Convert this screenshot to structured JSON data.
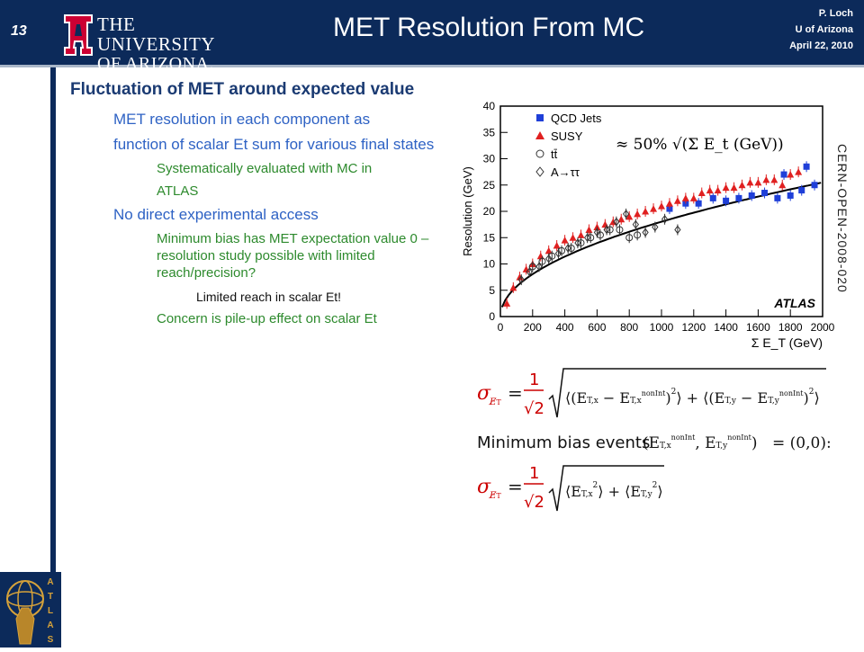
{
  "header": {
    "slide_number": "13",
    "university_line1": "THE UNIVERSITY",
    "university_line2": "OF ARIZONA.",
    "title": "MET Resolution From MC",
    "author": "P. Loch",
    "affiliation": "U of Arizona",
    "date": "April 22, 2010"
  },
  "body": {
    "bullet1": "Fluctuation of MET around expected value",
    "sub1": "MET resolution in each component as",
    "sub2": "function of scalar Et sum for various final states",
    "sub3a": "Systematically evaluated with MC in",
    "sub3b": "ATLAS",
    "sub4": "No direct experimental access",
    "sub5": "Minimum bias has MET expectation value 0 – resolution study possible with limited reach/precision?",
    "sub6": "Limited reach in scalar Et!",
    "sub7": "Concern is pile-up effect on scalar Et"
  },
  "side_label": "CERN-OPEN-2008-020",
  "formulas": {
    "min_bias_text": "Minimum bias events",
    "min_bias_value": "= (0,0):",
    "one": "1",
    "sqrt2": "√2"
  },
  "atlas_label": "ATLAS",
  "chart_data": {
    "type": "scatter",
    "xlabel": "Σ E_T (GeV)",
    "ylabel": "Resolution (GeV)",
    "xlim": [
      0,
      2000
    ],
    "ylim": [
      0,
      40
    ],
    "xticks": [
      0,
      200,
      400,
      600,
      800,
      1000,
      1200,
      1400,
      1600,
      1800,
      2000
    ],
    "yticks": [
      0,
      5,
      10,
      15,
      20,
      25,
      30,
      35,
      40
    ],
    "annotation": "≈ 50% √(Σ E_t (GeV))",
    "atlas_text": "ATLAS",
    "legend_position": "top-left",
    "fit_coefficient": 0.57,
    "series": [
      {
        "name": "QCD Jets",
        "color": "#1f3fd8",
        "marker": "square",
        "points": [
          [
            1050,
            20.5
          ],
          [
            1150,
            21.5
          ],
          [
            1230,
            21.5
          ],
          [
            1320,
            22.5
          ],
          [
            1400,
            22.0
          ],
          [
            1480,
            22.5
          ],
          [
            1560,
            23.0
          ],
          [
            1640,
            23.5
          ],
          [
            1720,
            22.5
          ],
          [
            1800,
            23.0
          ],
          [
            1870,
            24.0
          ],
          [
            1950,
            25.0
          ],
          [
            1760,
            27.0
          ],
          [
            1900,
            28.5
          ]
        ]
      },
      {
        "name": "SUSY",
        "color": "#e02020",
        "marker": "triangle",
        "points": [
          [
            40,
            2.5
          ],
          [
            80,
            5.5
          ],
          [
            120,
            7.5
          ],
          [
            160,
            9.0
          ],
          [
            200,
            10.0
          ],
          [
            250,
            11.5
          ],
          [
            300,
            12.5
          ],
          [
            350,
            13.5
          ],
          [
            400,
            14.5
          ],
          [
            450,
            15.0
          ],
          [
            500,
            15.5
          ],
          [
            550,
            16.5
          ],
          [
            600,
            17.0
          ],
          [
            650,
            17.5
          ],
          [
            700,
            18.0
          ],
          [
            750,
            18.5
          ],
          [
            800,
            19.0
          ],
          [
            850,
            19.5
          ],
          [
            900,
            20.0
          ],
          [
            950,
            20.5
          ],
          [
            1000,
            21.0
          ],
          [
            1050,
            21.5
          ],
          [
            1100,
            22.0
          ],
          [
            1150,
            22.5
          ],
          [
            1200,
            22.5
          ],
          [
            1250,
            23.5
          ],
          [
            1300,
            24.0
          ],
          [
            1350,
            24.0
          ],
          [
            1400,
            24.5
          ],
          [
            1450,
            24.5
          ],
          [
            1500,
            25.0
          ],
          [
            1550,
            25.5
          ],
          [
            1600,
            25.5
          ],
          [
            1650,
            26.0
          ],
          [
            1700,
            26.0
          ],
          [
            1750,
            25.0
          ],
          [
            1800,
            27.0
          ],
          [
            1850,
            27.5
          ]
        ]
      },
      {
        "name": "tt̄",
        "color": "#333333",
        "marker": "circle",
        "points": [
          [
            200,
            9.5
          ],
          [
            260,
            10.5
          ],
          [
            320,
            11.5
          ],
          [
            380,
            12.5
          ],
          [
            440,
            13.0
          ],
          [
            500,
            14.0
          ],
          [
            560,
            15.0
          ],
          [
            620,
            15.5
          ],
          [
            680,
            16.5
          ],
          [
            740,
            16.5
          ],
          [
            800,
            15.0
          ],
          [
            850,
            15.5
          ]
        ]
      },
      {
        "name": "A→ττ",
        "color": "#333333",
        "marker": "diamond",
        "points": [
          [
            130,
            7.0
          ],
          [
            180,
            8.5
          ],
          [
            240,
            9.5
          ],
          [
            300,
            11.0
          ],
          [
            360,
            12.0
          ],
          [
            420,
            13.0
          ],
          [
            480,
            14.0
          ],
          [
            540,
            15.0
          ],
          [
            600,
            16.0
          ],
          [
            660,
            16.5
          ],
          [
            720,
            18.0
          ],
          [
            780,
            19.5
          ],
          [
            840,
            17.5
          ],
          [
            900,
            16.0
          ],
          [
            960,
            17.0
          ],
          [
            1020,
            18.5
          ],
          [
            1100,
            16.5
          ]
        ]
      }
    ]
  }
}
